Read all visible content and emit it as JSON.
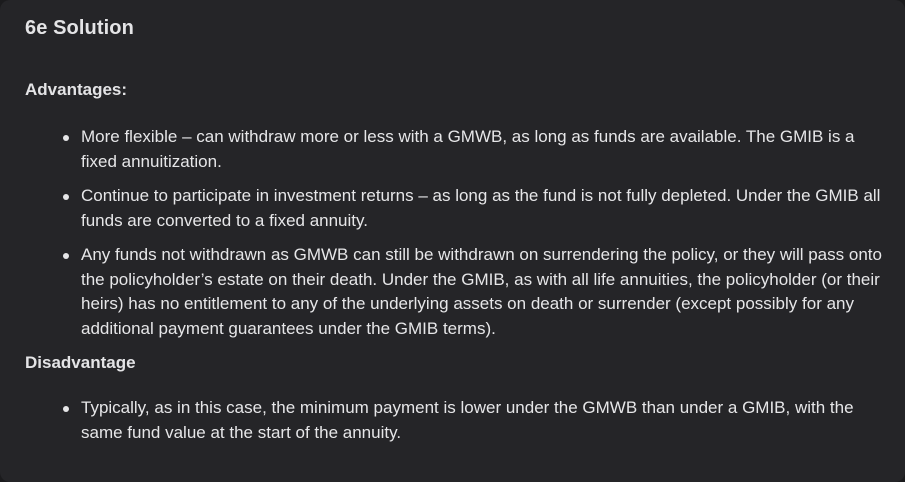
{
  "title": "6e Solution",
  "advantages": {
    "heading": "Advantages:",
    "items": [
      "More flexible – can withdraw more or less with a GMWB, as long as funds are available. The GMIB is a fixed annuitization.",
      "Continue to participate in investment returns – as long as the fund is not fully depleted. Under the GMIB all funds are converted to a fixed annuity.",
      "Any funds not withdrawn as GMWB can still be withdrawn on surrendering the policy, or they will pass onto the policyholder’s estate on their death. Under the GMIB, as with all life annuities, the policyholder (or their heirs) has no entitlement to any of the underlying assets on death or surrender (except possibly for any additional payment guarantees under the GMIB terms)."
    ]
  },
  "disadvantage": {
    "heading": "Disadvantage",
    "items": [
      "Typically, as in this case, the minimum payment is lower under the GMWB than under a GMIB, with the same fund value at the start of the annuity."
    ]
  }
}
